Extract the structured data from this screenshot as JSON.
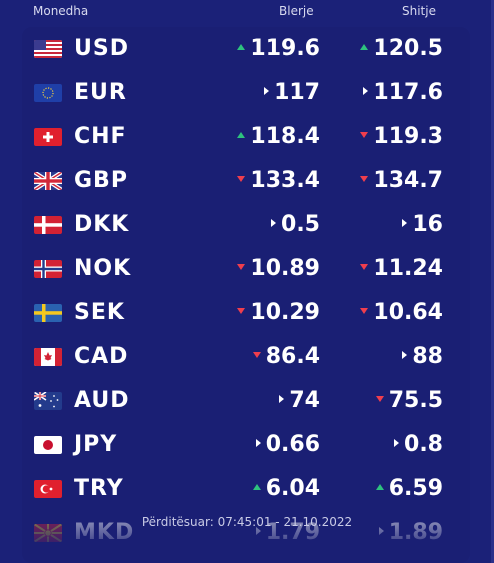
{
  "header": {
    "currency_label": "Monedha",
    "buy_label": "Blerje",
    "sell_label": "Shitje"
  },
  "colors": {
    "background": "#1b2178",
    "up": "#2ec27e",
    "down": "#f03e4d",
    "same": "#ffffff"
  },
  "rates": [
    {
      "code": "USD",
      "flag": "us-flag-icon",
      "buy": "119.6",
      "buy_trend": "up",
      "sell": "120.5",
      "sell_trend": "up"
    },
    {
      "code": "EUR",
      "flag": "eu-flag-icon",
      "buy": "117",
      "buy_trend": "same",
      "sell": "117.6",
      "sell_trend": "same"
    },
    {
      "code": "CHF",
      "flag": "ch-flag-icon",
      "buy": "118.4",
      "buy_trend": "up",
      "sell": "119.3",
      "sell_trend": "down"
    },
    {
      "code": "GBP",
      "flag": "gb-flag-icon",
      "buy": "133.4",
      "buy_trend": "down",
      "sell": "134.7",
      "sell_trend": "down"
    },
    {
      "code": "DKK",
      "flag": "dk-flag-icon",
      "buy": "0.5",
      "buy_trend": "same",
      "sell": "16",
      "sell_trend": "same"
    },
    {
      "code": "NOK",
      "flag": "no-flag-icon",
      "buy": "10.89",
      "buy_trend": "down",
      "sell": "11.24",
      "sell_trend": "down"
    },
    {
      "code": "SEK",
      "flag": "se-flag-icon",
      "buy": "10.29",
      "buy_trend": "down",
      "sell": "10.64",
      "sell_trend": "down"
    },
    {
      "code": "CAD",
      "flag": "ca-flag-icon",
      "buy": "86.4",
      "buy_trend": "down",
      "sell": "88",
      "sell_trend": "same"
    },
    {
      "code": "AUD",
      "flag": "au-flag-icon",
      "buy": "74",
      "buy_trend": "same",
      "sell": "75.5",
      "sell_trend": "down"
    },
    {
      "code": "JPY",
      "flag": "jp-flag-icon",
      "buy": "0.66",
      "buy_trend": "same",
      "sell": "0.8",
      "sell_trend": "same"
    },
    {
      "code": "TRY",
      "flag": "tr-flag-icon",
      "buy": "6.04",
      "buy_trend": "up",
      "sell": "6.59",
      "sell_trend": "up"
    },
    {
      "code": "MKD",
      "flag": "mk-flag-icon",
      "buy": "1.79",
      "buy_trend": "same",
      "sell": "1.89",
      "sell_trend": "same"
    }
  ],
  "footer": {
    "updated": "Përditësuar: 07:45:01 - 21.10.2022"
  }
}
